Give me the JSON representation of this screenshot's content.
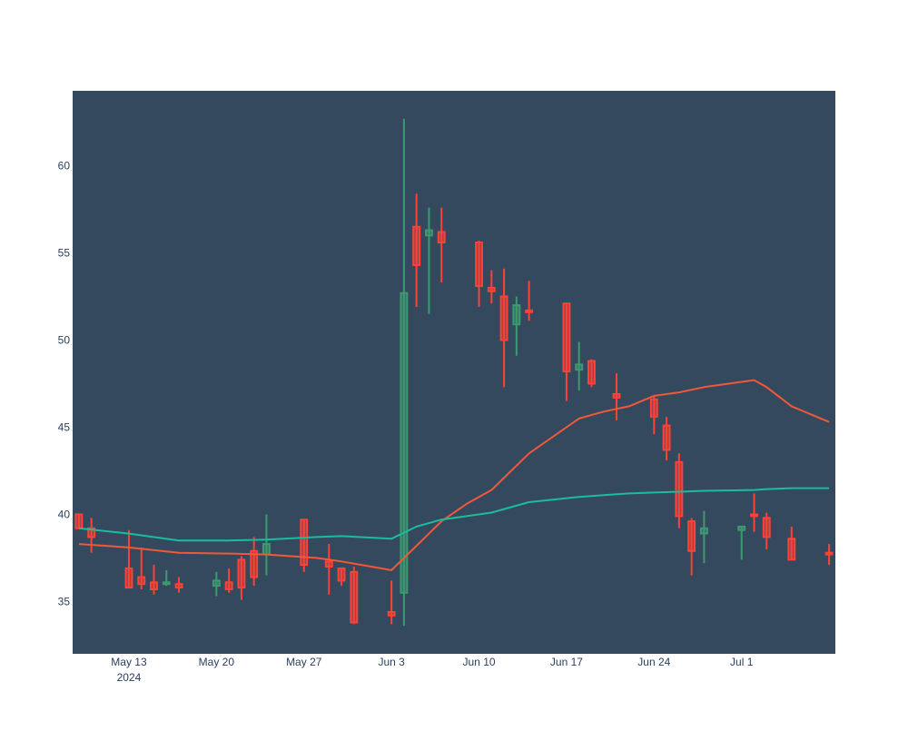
{
  "chart_data": {
    "type": "candlestick",
    "xaxis_year_label": "2024",
    "x_ticks": [
      "May 13",
      "May 20",
      "May 27",
      "Jun 3",
      "Jun 10",
      "Jun 17",
      "Jun 24",
      "Jul 1"
    ],
    "y_ticks": [
      35,
      40,
      45,
      50,
      55,
      60
    ],
    "ylim": [
      32,
      64.3
    ],
    "xlim": [
      "2024-05-09",
      "2024-07-08"
    ],
    "grid": false,
    "legend": "none",
    "colors": {
      "plot_bg": "#34495e",
      "increasing": "#3d9970",
      "decreasing": "#ff4136",
      "ma_short": "#f0583a",
      "ma_long": "#1abc9c"
    },
    "candles": [
      {
        "date": "2024-05-09",
        "open": 40.0,
        "high": 40.0,
        "low": 39.2,
        "close": 39.2
      },
      {
        "date": "2024-05-10",
        "open": 39.2,
        "high": 39.8,
        "low": 37.8,
        "close": 38.7
      },
      {
        "date": "2024-05-13",
        "open": 36.9,
        "high": 39.1,
        "low": 35.8,
        "close": 35.8
      },
      {
        "date": "2024-05-14",
        "open": 36.4,
        "high": 38.1,
        "low": 35.7,
        "close": 36.0
      },
      {
        "date": "2024-05-15",
        "open": 36.1,
        "high": 37.1,
        "low": 35.4,
        "close": 35.7
      },
      {
        "date": "2024-05-16",
        "open": 36.0,
        "high": 36.8,
        "low": 35.9,
        "close": 36.1
      },
      {
        "date": "2024-05-17",
        "open": 36.0,
        "high": 36.4,
        "low": 35.5,
        "close": 35.8
      },
      {
        "date": "2024-05-20",
        "open": 35.9,
        "high": 36.7,
        "low": 35.3,
        "close": 36.2
      },
      {
        "date": "2024-05-21",
        "open": 36.1,
        "high": 36.9,
        "low": 35.5,
        "close": 35.7
      },
      {
        "date": "2024-05-22",
        "open": 37.4,
        "high": 37.6,
        "low": 35.1,
        "close": 35.8
      },
      {
        "date": "2024-05-23",
        "open": 37.9,
        "high": 38.7,
        "low": 35.9,
        "close": 36.4
      },
      {
        "date": "2024-05-24",
        "open": 37.7,
        "high": 40.0,
        "low": 36.5,
        "close": 38.3
      },
      {
        "date": "2024-05-27",
        "open": 39.7,
        "high": 39.7,
        "low": 36.7,
        "close": 37.1
      },
      {
        "date": "2024-05-29",
        "open": 37.3,
        "high": 38.3,
        "low": 35.4,
        "close": 37.0
      },
      {
        "date": "2024-05-30",
        "open": 36.9,
        "high": 36.9,
        "low": 35.9,
        "close": 36.2
      },
      {
        "date": "2024-05-31",
        "open": 36.7,
        "high": 37.0,
        "low": 33.7,
        "close": 33.8
      },
      {
        "date": "2024-06-03",
        "open": 34.4,
        "high": 36.2,
        "low": 33.7,
        "close": 34.2
      },
      {
        "date": "2024-06-04",
        "open": 35.5,
        "high": 62.7,
        "low": 33.6,
        "close": 52.7
      },
      {
        "date": "2024-06-05",
        "open": 56.5,
        "high": 58.4,
        "low": 51.9,
        "close": 54.3
      },
      {
        "date": "2024-06-06",
        "open": 56.0,
        "high": 57.6,
        "low": 51.5,
        "close": 56.3
      },
      {
        "date": "2024-06-07",
        "open": 56.2,
        "high": 57.6,
        "low": 53.3,
        "close": 55.6
      },
      {
        "date": "2024-06-10",
        "open": 55.6,
        "high": 55.7,
        "low": 51.9,
        "close": 53.1
      },
      {
        "date": "2024-06-11",
        "open": 53.0,
        "high": 54.0,
        "low": 52.1,
        "close": 52.8
      },
      {
        "date": "2024-06-12",
        "open": 52.5,
        "high": 54.1,
        "low": 47.3,
        "close": 50.0
      },
      {
        "date": "2024-06-13",
        "open": 50.9,
        "high": 52.5,
        "low": 49.1,
        "close": 52.0
      },
      {
        "date": "2024-06-14",
        "open": 51.7,
        "high": 53.4,
        "low": 51.1,
        "close": 51.6
      },
      {
        "date": "2024-06-17",
        "open": 52.1,
        "high": 52.1,
        "low": 46.5,
        "close": 48.2
      },
      {
        "date": "2024-06-18",
        "open": 48.3,
        "high": 49.9,
        "low": 47.1,
        "close": 48.6
      },
      {
        "date": "2024-06-19",
        "open": 48.8,
        "high": 48.9,
        "low": 47.3,
        "close": 47.5
      },
      {
        "date": "2024-06-21",
        "open": 46.9,
        "high": 48.1,
        "low": 45.4,
        "close": 46.7
      },
      {
        "date": "2024-06-24",
        "open": 46.6,
        "high": 46.8,
        "low": 44.6,
        "close": 45.6
      },
      {
        "date": "2024-06-25",
        "open": 45.1,
        "high": 45.6,
        "low": 43.1,
        "close": 43.7
      },
      {
        "date": "2024-06-26",
        "open": 43.0,
        "high": 43.5,
        "low": 39.2,
        "close": 39.9
      },
      {
        "date": "2024-06-27",
        "open": 39.6,
        "high": 39.8,
        "low": 36.5,
        "close": 37.9
      },
      {
        "date": "2024-06-28",
        "open": 38.9,
        "high": 40.2,
        "low": 37.2,
        "close": 39.2
      },
      {
        "date": "2024-07-01",
        "open": 39.1,
        "high": 39.3,
        "low": 37.4,
        "close": 39.3
      },
      {
        "date": "2024-07-02",
        "open": 40.0,
        "high": 41.2,
        "low": 39.0,
        "close": 39.9
      },
      {
        "date": "2024-07-03",
        "open": 39.8,
        "high": 40.1,
        "low": 38.0,
        "close": 38.7
      },
      {
        "date": "2024-07-05",
        "open": 38.6,
        "high": 39.3,
        "low": 37.4,
        "close": 37.4
      },
      {
        "date": "2024-07-08",
        "open": 37.8,
        "high": 38.3,
        "low": 37.1,
        "close": 37.7
      }
    ],
    "series": [
      {
        "key": "ma_short",
        "x": [
          "2024-05-09",
          "2024-05-13",
          "2024-05-17",
          "2024-05-21",
          "2024-05-24",
          "2024-05-28",
          "2024-05-30",
          "2024-06-03",
          "2024-06-05",
          "2024-06-07",
          "2024-06-09",
          "2024-06-11",
          "2024-06-14",
          "2024-06-18",
          "2024-06-20",
          "2024-06-22",
          "2024-06-24",
          "2024-06-26",
          "2024-06-28",
          "2024-07-02",
          "2024-07-03",
          "2024-07-05",
          "2024-07-08"
        ],
        "y": [
          38.3,
          38.1,
          37.8,
          37.75,
          37.7,
          37.5,
          37.3,
          36.8,
          38.2,
          39.6,
          40.6,
          41.4,
          43.5,
          45.5,
          45.9,
          46.2,
          46.8,
          47.0,
          47.3,
          47.7,
          47.3,
          46.2,
          45.3
        ]
      },
      {
        "key": "ma_long",
        "x": [
          "2024-05-09",
          "2024-05-13",
          "2024-05-17",
          "2024-05-21",
          "2024-05-24",
          "2024-05-28",
          "2024-05-30",
          "2024-06-03",
          "2024-06-05",
          "2024-06-07",
          "2024-06-09",
          "2024-06-11",
          "2024-06-14",
          "2024-06-18",
          "2024-06-20",
          "2024-06-22",
          "2024-06-24",
          "2024-06-26",
          "2024-06-28",
          "2024-07-02",
          "2024-07-03",
          "2024-07-05",
          "2024-07-08"
        ],
        "y": [
          39.2,
          38.9,
          38.5,
          38.5,
          38.55,
          38.7,
          38.75,
          38.6,
          39.3,
          39.7,
          39.9,
          40.1,
          40.7,
          41.0,
          41.1,
          41.2,
          41.25,
          41.3,
          41.35,
          41.4,
          41.45,
          41.5,
          41.5
        ]
      }
    ]
  }
}
